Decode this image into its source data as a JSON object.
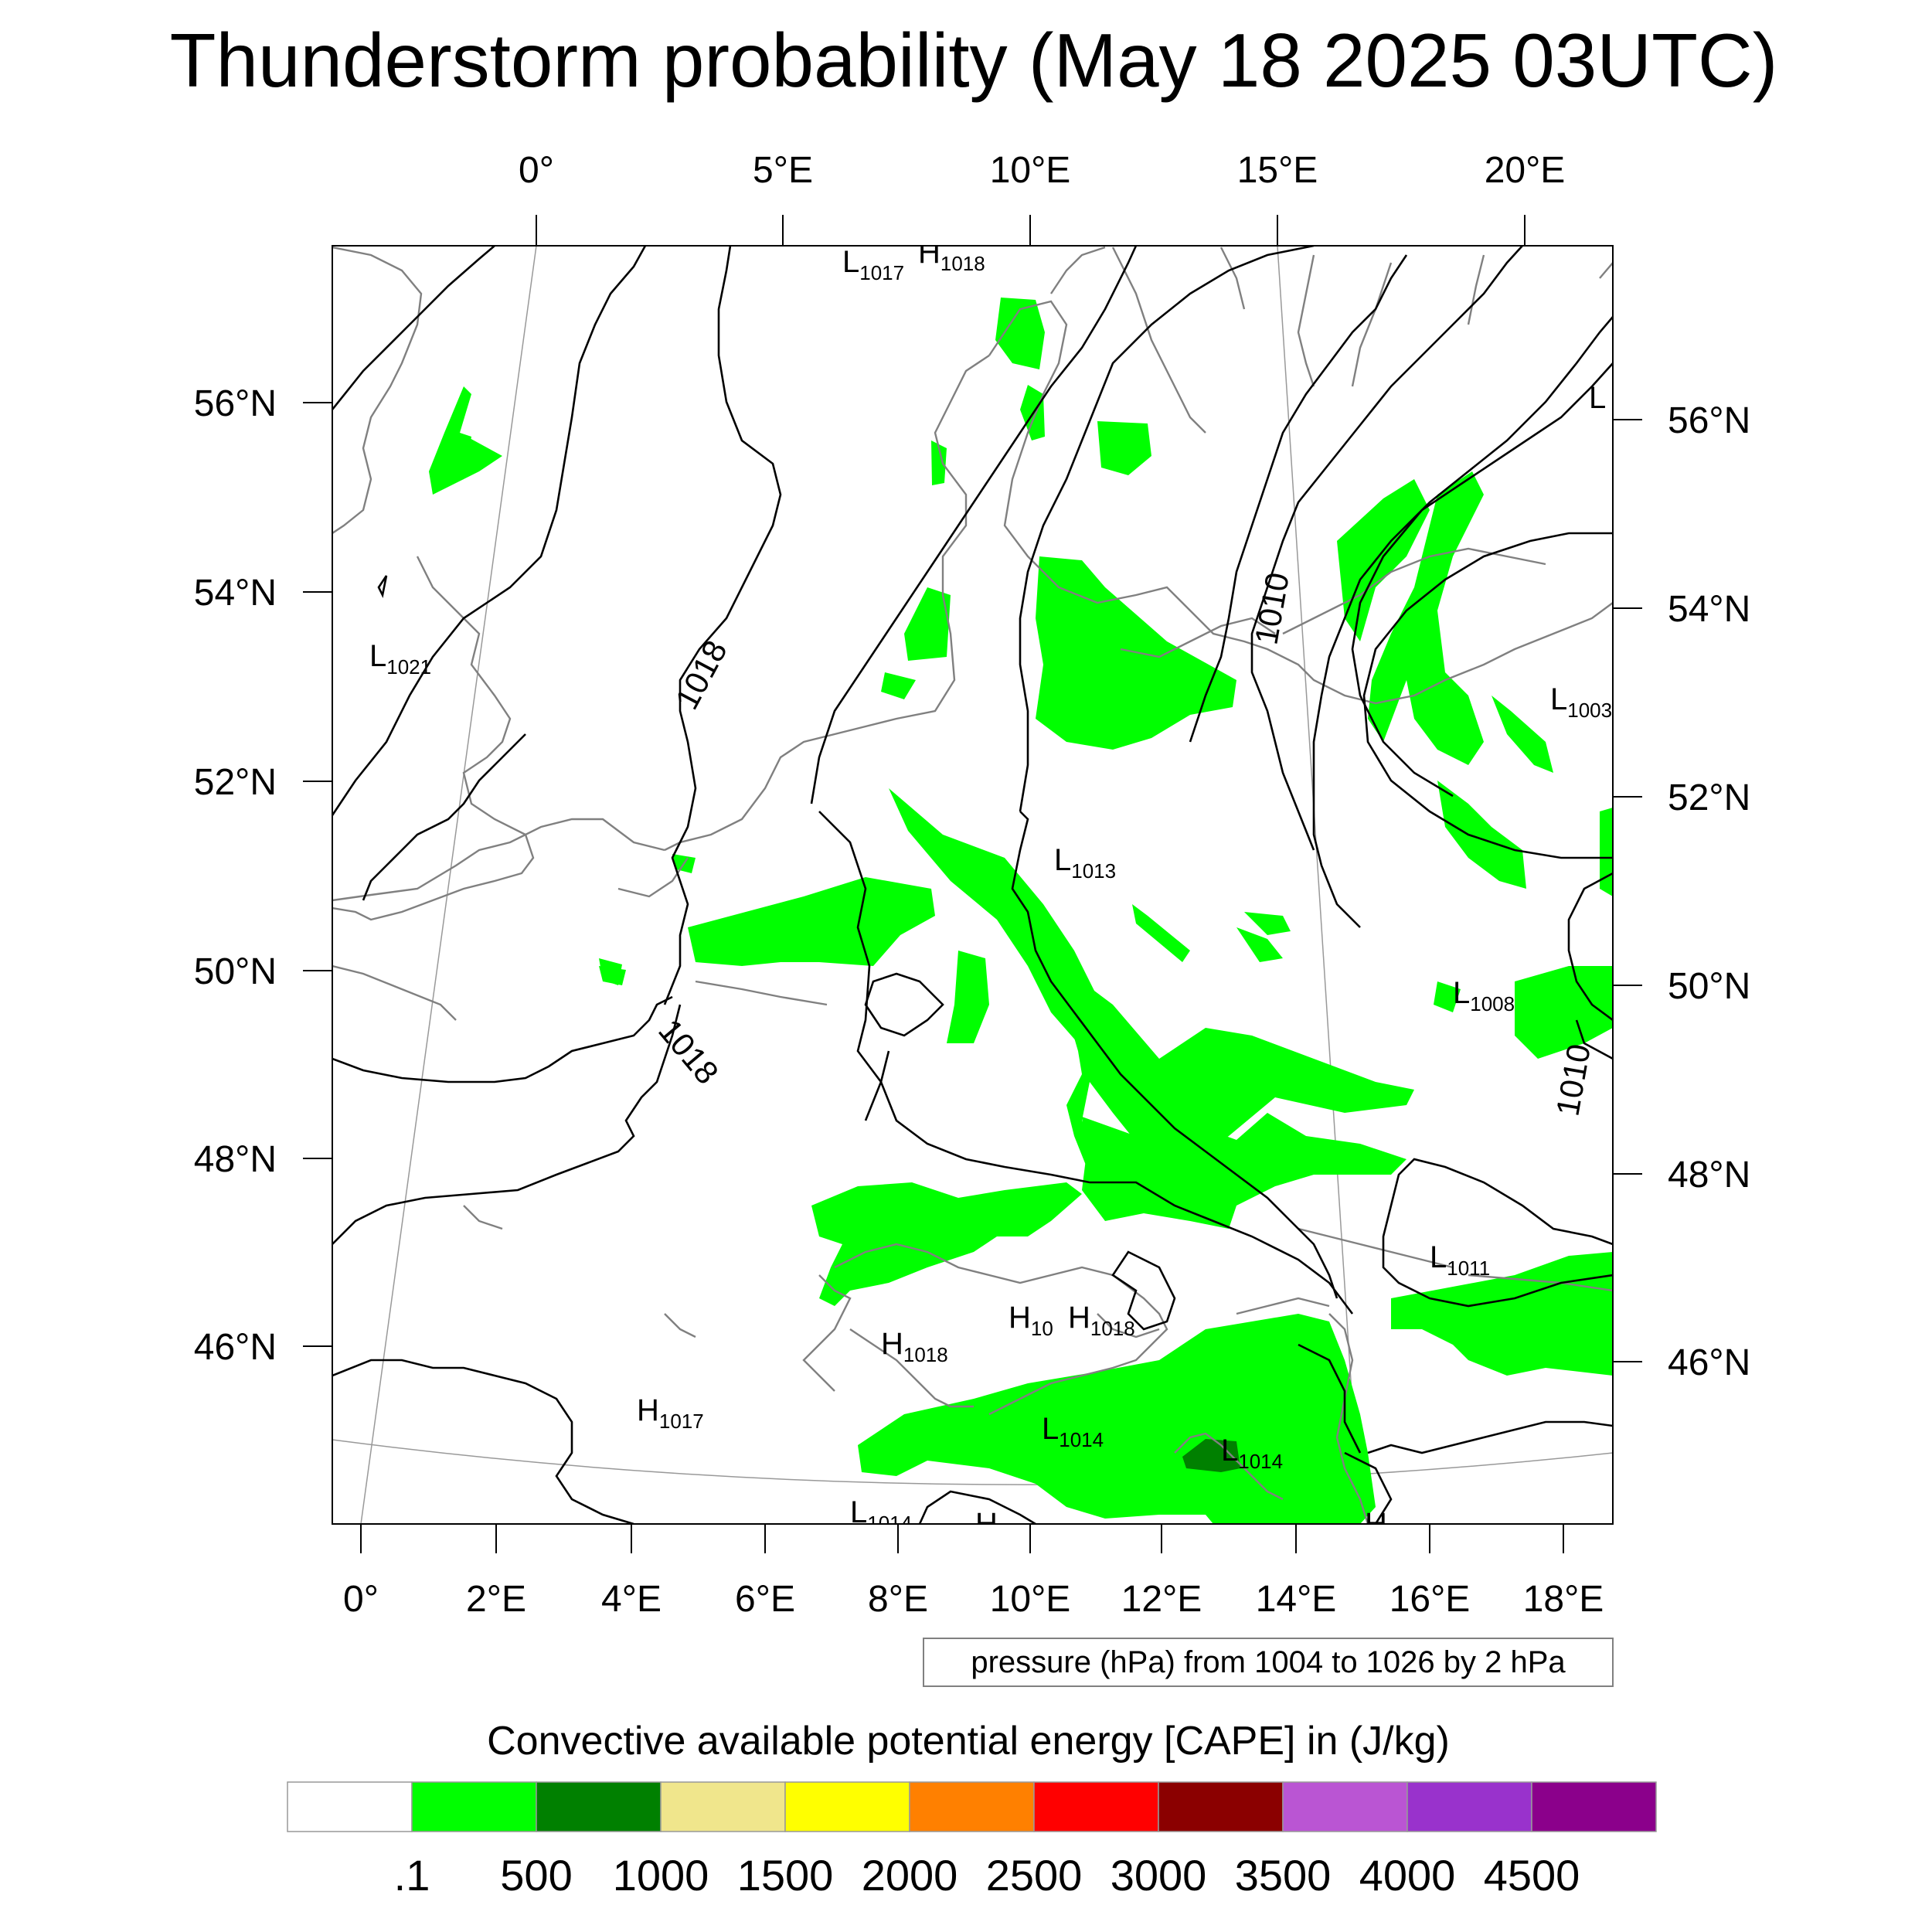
{
  "title": "Thunderstorm probability (May 18 2025 03UTC)",
  "top_longitude_labels": [
    "0°",
    "5°E",
    "10°E",
    "15°E",
    "20°E"
  ],
  "bottom_longitude_labels": [
    "0°",
    "2°E",
    "4°E",
    "6°E",
    "8°E",
    "10°E",
    "12°E",
    "14°E",
    "16°E",
    "18°E"
  ],
  "left_latitude_labels": [
    "56°N",
    "54°N",
    "52°N",
    "50°N",
    "48°N",
    "46°N"
  ],
  "right_latitude_labels": [
    "56°N",
    "54°N",
    "52°N",
    "50°N",
    "48°N",
    "46°N"
  ],
  "pressure_centers": [
    {
      "letter": "L",
      "value": "1017"
    },
    {
      "letter": "H",
      "value": "1018"
    },
    {
      "letter": "L",
      "value": "1021"
    },
    {
      "letter": "L",
      "value": "1013"
    },
    {
      "letter": "L",
      "value": "1003"
    },
    {
      "letter": "L",
      "value": "1008"
    },
    {
      "letter": "L",
      "value": "1011"
    },
    {
      "letter": "H",
      "value": "10"
    },
    {
      "letter": "H",
      "value": "1018"
    },
    {
      "letter": "H",
      "value": "1018"
    },
    {
      "letter": "H",
      "value": "1017"
    },
    {
      "letter": "L",
      "value": "1014"
    },
    {
      "letter": "L",
      "value": "1014"
    },
    {
      "letter": "L",
      "value": "1014"
    },
    {
      "letter": "H",
      "value": ""
    },
    {
      "letter": "H",
      "value": ""
    },
    {
      "letter": "L",
      "value": ""
    }
  ],
  "contour_labels": [
    "1018",
    "1018",
    "1010",
    "1010"
  ],
  "pressure_info": "pressure (hPa) from 1004 to 1026 by 2 hPa",
  "legend": {
    "title": "Convective available potential energy [CAPE] in (J/kg)",
    "colors": [
      "#ffffff",
      "#00ff00",
      "#008000",
      "#f0e68c",
      "#ffff00",
      "#ff8000",
      "#ff0000",
      "#8b0000",
      "#ba55d3",
      "#9932cc",
      "#8b008b"
    ],
    "labels": [
      ".1",
      "500",
      "1000",
      "1500",
      "2000",
      "2500",
      "3000",
      "3500",
      "4000",
      "4500"
    ]
  },
  "map_colors": {
    "cape_low": "#00ff00",
    "cape_mid": "#008000",
    "coastline": "#808080",
    "isobar": "#000000",
    "graticule": "#999999"
  }
}
